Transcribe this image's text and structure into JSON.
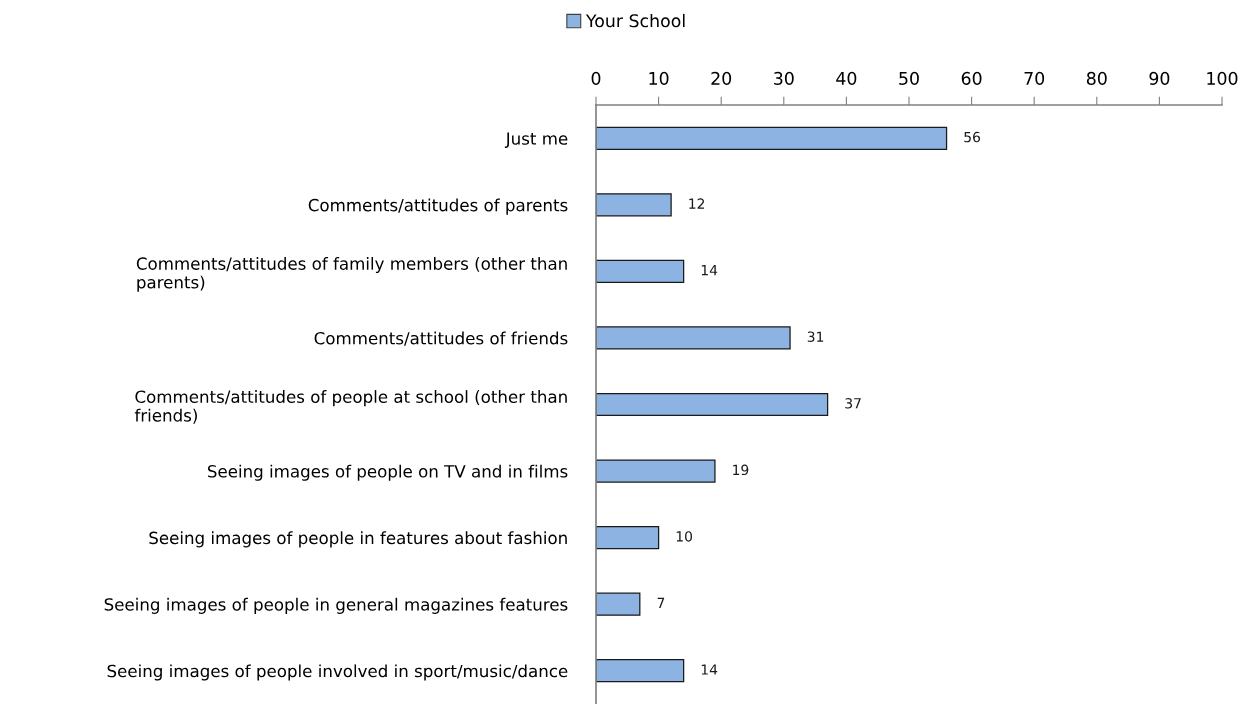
{
  "chart_data": {
    "type": "bar",
    "orientation": "horizontal",
    "categories": [
      "Just me",
      "Comments/attitudes of parents",
      "Comments/attitudes of family members (other than\nparents)",
      "Comments/attitudes of friends",
      "Comments/attitudes of people at school (other than\nfriends)",
      "Seeing images of people on TV and in films",
      "Seeing images of people in features about fashion",
      "Seeing images of people in general magazines features",
      "Seeing images of people involved in sport/music/dance"
    ],
    "series": [
      {
        "name": "Your School",
        "color": "#8db3e2",
        "values": [
          56,
          12,
          14,
          31,
          37,
          19,
          10,
          7,
          14
        ]
      }
    ],
    "xlim": [
      0,
      100
    ],
    "xticks": [
      0,
      10,
      20,
      30,
      40,
      50,
      60,
      70,
      80,
      90,
      100
    ],
    "data_labels": true,
    "legend": "top",
    "grid": false
  }
}
